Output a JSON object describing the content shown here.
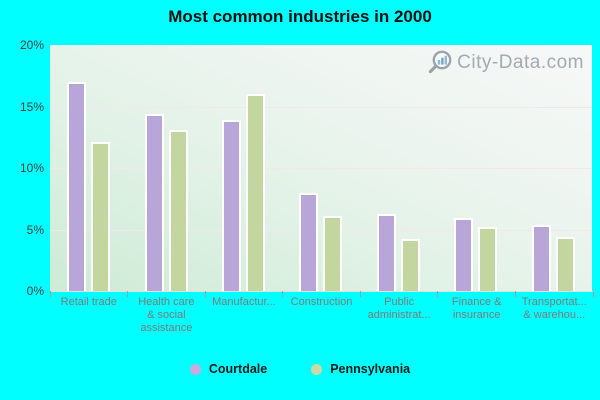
{
  "title": "Most common industries in 2000",
  "watermark": {
    "text": "City-Data.com"
  },
  "colors": {
    "background": "#00ffff",
    "plot_gradient_bottom_left": "#cdebd5",
    "plot_gradient_top_right": "#f6f8f7",
    "gridline": "#f2e6ef",
    "courtdale_bar": "#b9a6d8",
    "pennsylvania_bar": "#c3d6a0",
    "courtdale_dot": "#c9abe0",
    "pennsylvania_dot": "#c9daa5",
    "y_label": "#3f3f3f",
    "x_label": "#7b7b7b",
    "watermark_text": "#a3aab1"
  },
  "chart_data": {
    "type": "bar",
    "categories": [
      "Retail trade",
      "Health care\n& social\nassistance",
      "Manufactur...",
      "Construction",
      "Public\nadministrat...",
      "Finance &\ninsurance",
      "Transportat...\n& warehou..."
    ],
    "series": [
      {
        "name": "Courtdale",
        "color": "#b9a6d8",
        "values": [
          17.0,
          14.4,
          13.9,
          8.0,
          6.3,
          5.9,
          5.4
        ]
      },
      {
        "name": "Pennsylvania",
        "color": "#c3d6a0",
        "values": [
          12.1,
          13.1,
          16.0,
          6.1,
          4.2,
          5.2,
          4.4
        ]
      }
    ],
    "title": "Most common industries in 2000",
    "xlabel": "",
    "ylabel": "",
    "ylim": [
      0,
      20
    ],
    "y_ticks": [
      "20%",
      "15%",
      "10%",
      "5%",
      "0%"
    ],
    "grid": true,
    "legend_position": "bottom"
  },
  "legend": {
    "items": [
      {
        "label": "Courtdale",
        "dot_color": "#c9abe0"
      },
      {
        "label": "Pennsylvania",
        "dot_color": "#c9daa5"
      }
    ]
  }
}
